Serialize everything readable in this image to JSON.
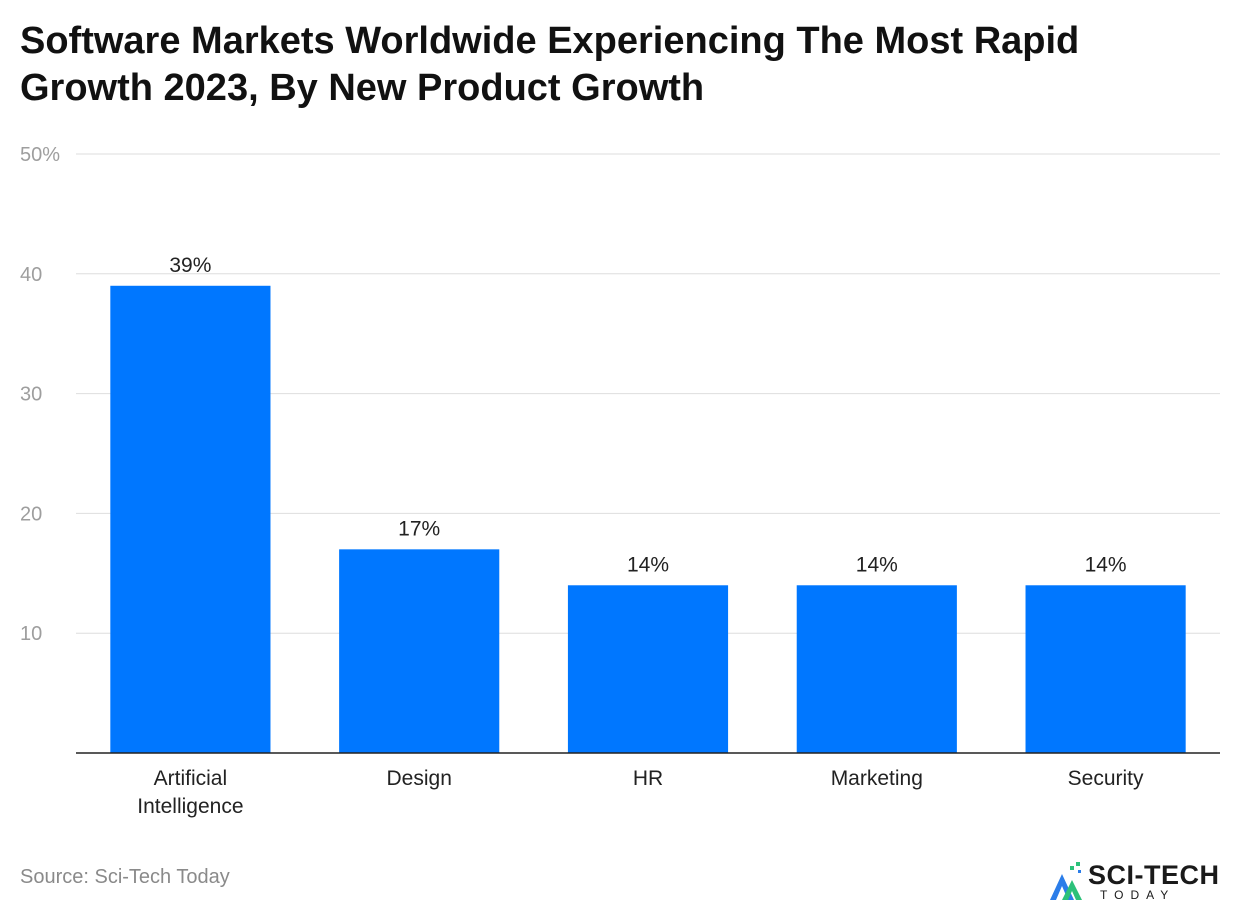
{
  "header": {
    "title": "Software Markets Worldwide Experiencing The Most Rapid Growth 2023, By New Product Growth"
  },
  "chart_data": {
    "type": "bar",
    "categories": [
      "Artificial Intelligence",
      "Design",
      "HR",
      "Marketing",
      "Security"
    ],
    "category_lines": [
      [
        "Artificial",
        "Intelligence"
      ],
      [
        "Design"
      ],
      [
        "HR"
      ],
      [
        "Marketing"
      ],
      [
        "Security"
      ]
    ],
    "values": [
      39,
      17,
      14,
      14,
      14
    ],
    "data_labels": [
      "39%",
      "17%",
      "14%",
      "14%",
      "14%"
    ],
    "yticks": [
      10,
      20,
      30,
      40,
      50
    ],
    "ytick_labels": [
      "10",
      "20",
      "30",
      "40",
      "50%"
    ],
    "ylim": [
      0,
      50
    ],
    "grid": true,
    "bar_color": "#0077ff"
  },
  "footer": {
    "source": "Source: Sci-Tech Today",
    "logo_main": "SCI-TECH",
    "logo_sub": "TODAY"
  }
}
